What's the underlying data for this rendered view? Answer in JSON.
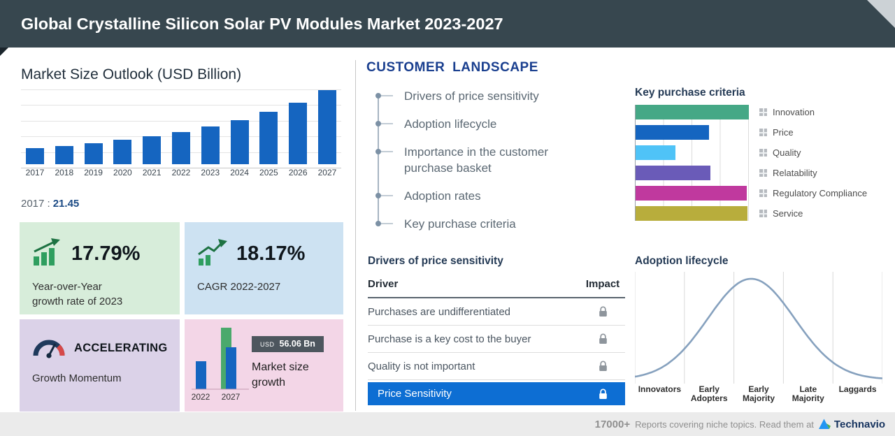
{
  "header": {
    "title": "Global Crystalline Silicon Solar PV Modules Market 2023-2027"
  },
  "market_size": {
    "base_year_label": "2017 :",
    "base_year_value": "21.45"
  },
  "cards": {
    "yoy": {
      "value": "17.79%",
      "label_line1": "Year-over-Year",
      "label_line2": "growth rate of 2023"
    },
    "cagr": {
      "value": "18.17%",
      "label": "CAGR 2022-2027"
    },
    "momentum": {
      "value": "ACCELERATING",
      "label": "Growth Momentum"
    },
    "growth": {
      "badge_currency": "USD",
      "badge_value": "56.06 Bn",
      "label_line1": "Market size",
      "label_line2": "growth",
      "year_start": "2022",
      "year_end": "2027"
    }
  },
  "customer_landscape": {
    "title": "CUSTOMER LANDSCAPE",
    "items": [
      "Drivers of price sensitivity",
      "Adoption lifecycle",
      "Importance in the customer purchase basket",
      "Adoption rates",
      "Key purchase criteria"
    ]
  },
  "price_sensitivity": {
    "title": "Drivers of price sensitivity",
    "columns": {
      "driver": "Driver",
      "impact": "Impact"
    },
    "rows": [
      "Purchases are undifferentiated",
      "Purchase is a key cost to the buyer",
      "Quality is not important"
    ],
    "highlight": "Price Sensitivity"
  },
  "footer": {
    "count": "17000+",
    "text": "Reports covering niche topics. Read them at",
    "brand": "Technavio"
  },
  "colors": {
    "header_bg": "#37474f",
    "bar_blue": "#1565c0",
    "highlight_blue": "#0d6ed3",
    "card_green": "#d7edda",
    "card_blue": "#cde2f2",
    "card_purple": "#dbd2e8",
    "card_pink": "#f3d6e7"
  },
  "chart_data": [
    {
      "type": "bar",
      "title": "Market Size Outlook (USD Billion)",
      "categories": [
        "2017",
        "2018",
        "2019",
        "2020",
        "2021",
        "2022",
        "2023",
        "2024",
        "2025",
        "2026",
        "2027"
      ],
      "values": [
        21.45,
        24.6,
        28.3,
        32.5,
        37.4,
        43.0,
        50.6,
        59.5,
        70.0,
        82.9,
        99.1
      ],
      "labeled_value": {
        "year": "2017",
        "value": 21.45
      },
      "ylim": [
        0,
        105
      ],
      "grid": true,
      "bar_color": "#1565c0"
    },
    {
      "type": "bar",
      "orientation": "horizontal",
      "title": "Key purchase criteria",
      "categories": [
        "Innovation",
        "Price",
        "Quality",
        "Relatability",
        "Regulatory Compliance",
        "Service"
      ],
      "values": [
        100,
        65,
        35,
        66,
        98,
        99
      ],
      "xlim": [
        0,
        100
      ],
      "colors": [
        "#45a886",
        "#1565c0",
        "#4fc3f7",
        "#6a5bb8",
        "#c0399e",
        "#b8ad3c"
      ],
      "legend_position": "right",
      "grid": true
    },
    {
      "type": "area",
      "subtype": "bell-curve",
      "title": "Adoption lifecycle",
      "categories": [
        "Innovators",
        "Early Adopters",
        "Early Majority",
        "Late Majority",
        "Laggards"
      ],
      "peak_at": "Early Majority",
      "line_color": "#86a1be",
      "grid": true
    },
    {
      "type": "bar",
      "title": "Market size growth",
      "categories": [
        "2022",
        "2027"
      ],
      "values": [
        43.0,
        99.1
      ],
      "growth_value": "USD 56.06 Bn"
    }
  ]
}
